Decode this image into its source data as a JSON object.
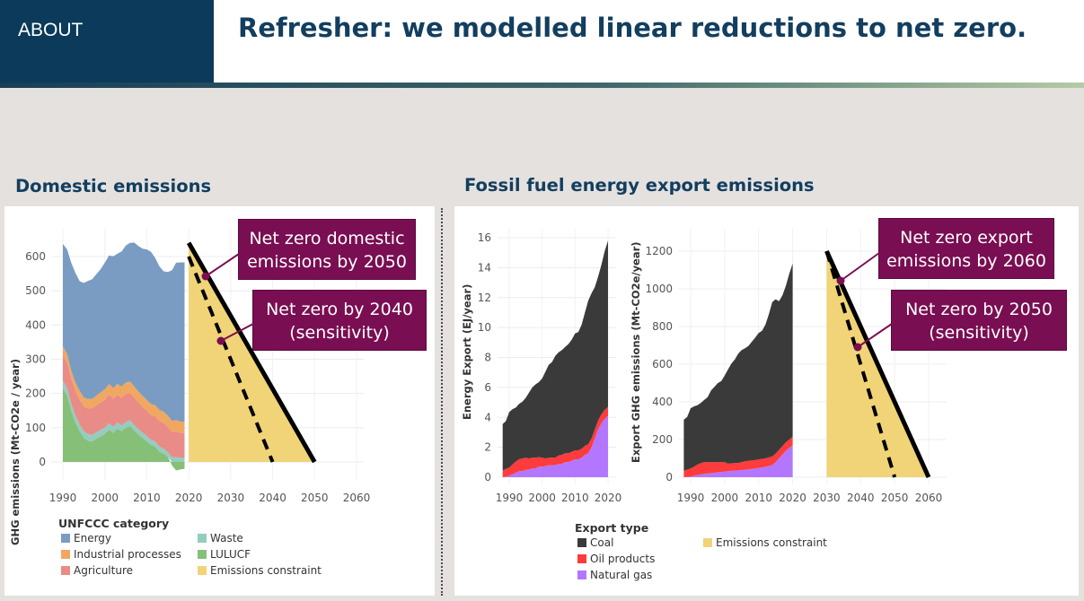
{
  "header": {
    "tag": "ABOUT",
    "title": "Refresher: we modelled linear reductions to net zero."
  },
  "colors": {
    "energy": "#7a9cc2",
    "industrial": "#f0a860",
    "agriculture": "#e98b86",
    "waste": "#95ccc0",
    "lulucf": "#86bf78",
    "constraint": "#f0d477",
    "coal": "#3a3a3a",
    "oil": "#ff3b3b",
    "gas": "#b377ff",
    "callout": "#7a0e52"
  },
  "domestic": {
    "title": "Domestic emissions",
    "ylabel": "GHG emissions (Mt-CO2e / year)",
    "legend_title": "UNFCCC category",
    "legend": [
      "Energy",
      "Industrial processes",
      "Agriculture",
      "Waste",
      "LULUCF",
      "Emissions constraint"
    ],
    "callout_main": "Net zero domestic emissions by 2050",
    "callout_sens": "Net zero by 2040 (sensitivity)"
  },
  "exports": {
    "title": "Fossil fuel energy export emissions",
    "ylabel_energy": "Energy Export (EJ/year)",
    "ylabel_ghg": "Export GHG emissions (Mt-CO2e/year)",
    "legend_title": "Export type",
    "legend": [
      "Coal",
      "Oil products",
      "Natural gas",
      "Emissions constraint"
    ],
    "callout_main": "Net zero export emissions by 2060",
    "callout_sens": "Net zero by 2050 (sensitivity)"
  },
  "chart_data": [
    {
      "type": "area",
      "ylabel": "GHG emissions (Mt-CO2e / year)",
      "ylim": [
        -40,
        660
      ],
      "yticks": [
        0,
        100,
        200,
        300,
        400,
        500,
        600
      ],
      "xlim": [
        1988,
        2063
      ],
      "xticks": [
        1990,
        2000,
        2010,
        2020,
        2030,
        2040,
        2050,
        2060
      ],
      "x": [
        1990,
        1991,
        1992,
        1993,
        1994,
        1995,
        1996,
        1997,
        1998,
        1999,
        2000,
        2001,
        2002,
        2003,
        2004,
        2005,
        2006,
        2007,
        2008,
        2009,
        2010,
        2011,
        2012,
        2013,
        2014,
        2015,
        2016,
        2017,
        2018,
        2019
      ],
      "series": [
        {
          "name": "LULUCF",
          "values": [
            215,
            195,
            150,
            115,
            90,
            70,
            62,
            60,
            68,
            75,
            82,
            95,
            85,
            98,
            90,
            100,
            105,
            92,
            80,
            70,
            60,
            50,
            45,
            30,
            25,
            15,
            -10,
            -25,
            -22,
            -20
          ]
        },
        {
          "name": "Waste",
          "values": [
            22,
            22,
            21,
            21,
            20,
            20,
            20,
            19,
            19,
            19,
            18,
            18,
            18,
            18,
            17,
            17,
            17,
            16,
            16,
            16,
            16,
            15,
            15,
            15,
            14,
            14,
            14,
            14,
            13,
            13
          ]
        },
        {
          "name": "Agriculture",
          "values": [
            75,
            74,
            72,
            72,
            73,
            72,
            75,
            78,
            79,
            80,
            82,
            84,
            82,
            80,
            81,
            82,
            80,
            80,
            78,
            76,
            73,
            72,
            74,
            75,
            76,
            74,
            73,
            75,
            72,
            72
          ]
        },
        {
          "name": "Industrial processes",
          "values": [
            25,
            25,
            24,
            24,
            25,
            26,
            27,
            27,
            28,
            29,
            30,
            31,
            31,
            32,
            32,
            33,
            33,
            33,
            32,
            31,
            32,
            32,
            32,
            32,
            32,
            32,
            33,
            33,
            33,
            33
          ]
        },
        {
          "name": "Energy",
          "values": [
            300,
            305,
            315,
            320,
            320,
            335,
            345,
            350,
            355,
            360,
            370,
            375,
            385,
            380,
            395,
            400,
            405,
            420,
            425,
            430,
            440,
            445,
            430,
            420,
            410,
            420,
            440,
            460,
            465,
            465
          ]
        },
        {
          "name": "Emissions constraint",
          "values": [
            {
              "x": 2020,
              "y": 640
            },
            {
              "x": 2050,
              "y": 0
            },
            {
              "x": 2062,
              "y": 0
            }
          ]
        }
      ],
      "constraint_lines": [
        {
          "name": "Net zero domestic emissions by 2050",
          "from": [
            2020,
            640
          ],
          "to": [
            2050,
            0
          ],
          "style": "solid"
        },
        {
          "name": "Net zero by 2040 (sensitivity)",
          "from": [
            2020,
            600
          ],
          "to": [
            2040,
            0
          ],
          "style": "dashed"
        }
      ]
    },
    {
      "type": "area",
      "ylabel": "Energy Export (EJ/year)",
      "ylim": [
        -0.6,
        16.5
      ],
      "yticks": [
        0,
        2,
        4,
        6,
        8,
        10,
        12,
        14,
        16
      ],
      "xlim": [
        1987,
        2023
      ],
      "xticks": [
        1990,
        2000,
        2010,
        2020
      ],
      "x": [
        1988,
        1989,
        1990,
        1991,
        1992,
        1993,
        1994,
        1995,
        1996,
        1997,
        1998,
        1999,
        2000,
        2001,
        2002,
        2003,
        2004,
        2005,
        2006,
        2007,
        2008,
        2009,
        2010,
        2011,
        2012,
        2013,
        2014,
        2015,
        2016,
        2017,
        2018,
        2019,
        2020
      ],
      "series": [
        {
          "name": "Natural gas",
          "values": [
            0.0,
            0.05,
            0.1,
            0.2,
            0.3,
            0.4,
            0.4,
            0.5,
            0.5,
            0.6,
            0.6,
            0.7,
            0.7,
            0.75,
            0.8,
            0.8,
            0.8,
            0.9,
            0.9,
            1.0,
            1.0,
            1.1,
            1.2,
            1.2,
            1.3,
            1.5,
            1.6,
            2.0,
            2.6,
            3.2,
            3.6,
            3.9,
            4.1
          ]
        },
        {
          "name": "Oil products",
          "values": [
            0.45,
            0.5,
            0.55,
            0.65,
            0.75,
            0.8,
            0.85,
            0.8,
            0.75,
            0.7,
            0.7,
            0.65,
            0.6,
            0.5,
            0.5,
            0.5,
            0.5,
            0.55,
            0.6,
            0.6,
            0.6,
            0.6,
            0.6,
            0.6,
            0.6,
            0.6,
            0.6,
            0.6,
            0.6,
            0.6,
            0.6,
            0.6,
            0.6
          ]
        },
        {
          "name": "Coal",
          "values": [
            3.1,
            3.2,
            3.7,
            3.7,
            3.6,
            3.7,
            3.8,
            4.0,
            4.4,
            4.7,
            4.9,
            5.0,
            5.3,
            5.8,
            6.2,
            6.4,
            6.8,
            6.9,
            7.0,
            7.1,
            7.3,
            7.5,
            7.8,
            7.9,
            8.3,
            8.9,
            9.6,
            9.7,
            9.5,
            9.6,
            10.0,
            10.6,
            11.1
          ]
        }
      ]
    },
    {
      "type": "area",
      "ylabel": "Export GHG emissions (Mt-CO2e/year)",
      "ylim": [
        -40,
        1260
      ],
      "yticks": [
        0,
        200,
        400,
        600,
        800,
        1000,
        1200
      ],
      "xlim": [
        1987,
        2063
      ],
      "xticks": [
        1990,
        2000,
        2010,
        2020,
        2030,
        2040,
        2050,
        2060
      ],
      "x": [
        1988,
        1989,
        1990,
        1991,
        1992,
        1993,
        1994,
        1995,
        1996,
        1997,
        1998,
        1999,
        2000,
        2001,
        2002,
        2003,
        2004,
        2005,
        2006,
        2007,
        2008,
        2009,
        2010,
        2011,
        2012,
        2013,
        2014,
        2015,
        2016,
        2017,
        2018,
        2019,
        2020
      ],
      "series": [
        {
          "name": "Natural gas",
          "values": [
            0,
            2,
            4,
            8,
            12,
            15,
            18,
            20,
            22,
            24,
            26,
            28,
            30,
            32,
            34,
            35,
            36,
            38,
            40,
            42,
            44,
            46,
            50,
            52,
            55,
            60,
            65,
            80,
            100,
            120,
            140,
            155,
            170
          ]
        },
        {
          "name": "Oil products",
          "values": [
            35,
            38,
            42,
            48,
            55,
            60,
            62,
            60,
            58,
            56,
            54,
            52,
            50,
            40,
            40,
            40,
            40,
            42,
            45,
            45,
            45,
            45,
            45,
            45,
            45,
            45,
            45,
            45,
            45,
            45,
            45,
            45,
            45
          ]
        },
        {
          "name": "Coal",
          "values": [
            270,
            280,
            320,
            320,
            315,
            320,
            330,
            345,
            380,
            400,
            420,
            430,
            460,
            500,
            530,
            550,
            580,
            595,
            600,
            610,
            630,
            650,
            670,
            680,
            710,
            760,
            820,
            820,
            790,
            800,
            830,
            880,
            920
          ]
        },
        {
          "name": "Emissions constraint",
          "values": [
            {
              "x": 2030,
              "y": 1200
            },
            {
              "x": 2060,
              "y": 0
            }
          ]
        }
      ],
      "constraint_lines": [
        {
          "name": "Net zero export emissions by 2060",
          "from": [
            2030,
            1200
          ],
          "to": [
            2060,
            0
          ],
          "style": "solid"
        },
        {
          "name": "Net zero by 2050 (sensitivity)",
          "from": [
            2030,
            1200
          ],
          "to": [
            2050,
            0
          ],
          "style": "dashed"
        }
      ]
    }
  ]
}
